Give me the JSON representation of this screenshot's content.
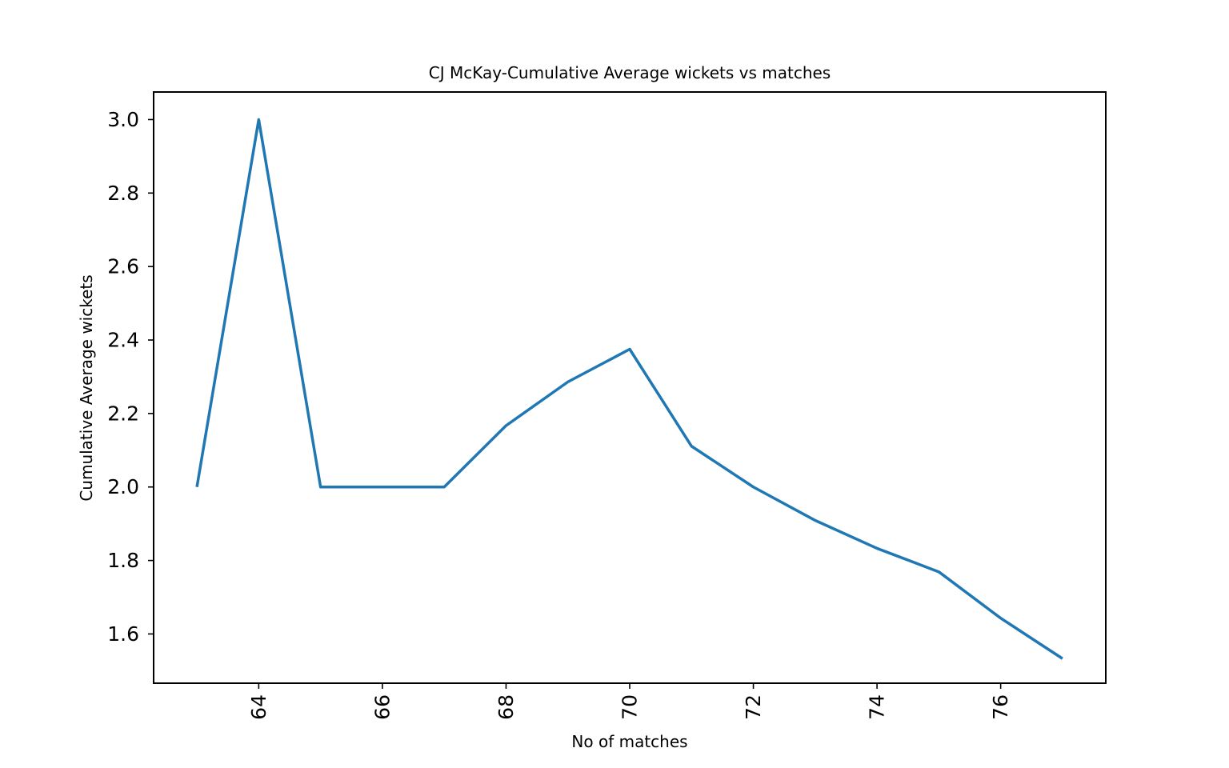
{
  "chart_data": {
    "type": "line",
    "title": "CJ McKay-Cumulative Average wickets vs matches",
    "xlabel": "No of matches",
    "ylabel": "Cumulative Average wickets",
    "xlim": [
      62.3,
      77.7
    ],
    "ylim": [
      1.466,
      3.075
    ],
    "xticks": [
      64,
      66,
      68,
      70,
      72,
      74,
      76
    ],
    "yticks": [
      1.6,
      1.8,
      2.0,
      2.2,
      2.4,
      2.6,
      2.8,
      3.0
    ],
    "ytick_labels": [
      "1.6",
      "1.8",
      "2.0",
      "2.2",
      "2.4",
      "2.6",
      "2.8",
      "3.0"
    ],
    "grid": false,
    "series": [
      {
        "color": "#1f77b4",
        "x": [
          63,
          64,
          65,
          66,
          67,
          68,
          69,
          70,
          71,
          72,
          73,
          74,
          75,
          76,
          77
        ],
        "y": [
          2.0,
          3.0,
          2.0,
          2.0,
          2.0,
          2.167,
          2.286,
          2.375,
          2.111,
          2.0,
          1.909,
          1.833,
          1.769,
          1.643,
          1.533
        ]
      }
    ]
  }
}
